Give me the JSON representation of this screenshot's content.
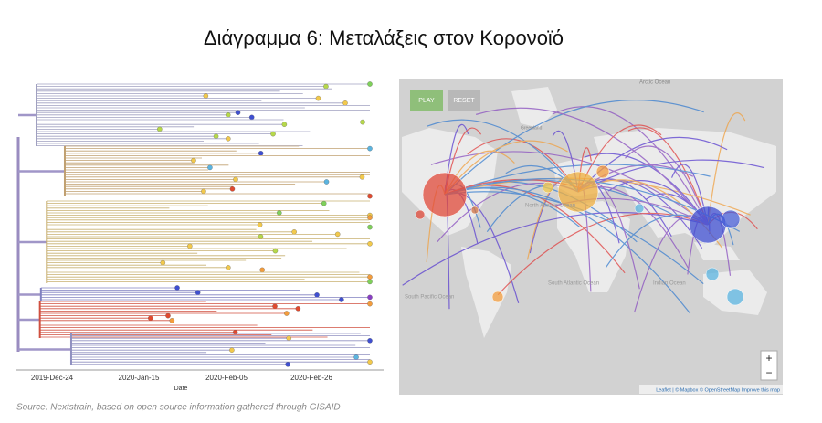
{
  "title": "Διάγραμμα 6: Μεταλάξεις στον Κορονοϊό",
  "tree": {
    "axis_labels": [
      "2019-Dec-24",
      "2020-Jan-15",
      "2020-Feb-05",
      "2020-Feb-26"
    ],
    "axis_title": "Date"
  },
  "map": {
    "buttons": [
      "PLAY",
      "RESET"
    ],
    "labels": [
      "Arctic Ocean",
      "Greenland",
      "North Atlantic Ocean",
      "South Atlantic Ocean",
      "South Pacific Ocean",
      "Indian Ocean"
    ],
    "zoom": [
      "+",
      "−"
    ],
    "attribution": "Leaflet | © Mapbox © OpenStreetMap Improve this map"
  },
  "source": "Source: Nextstrain, based on open source information gathered through GISAID"
}
